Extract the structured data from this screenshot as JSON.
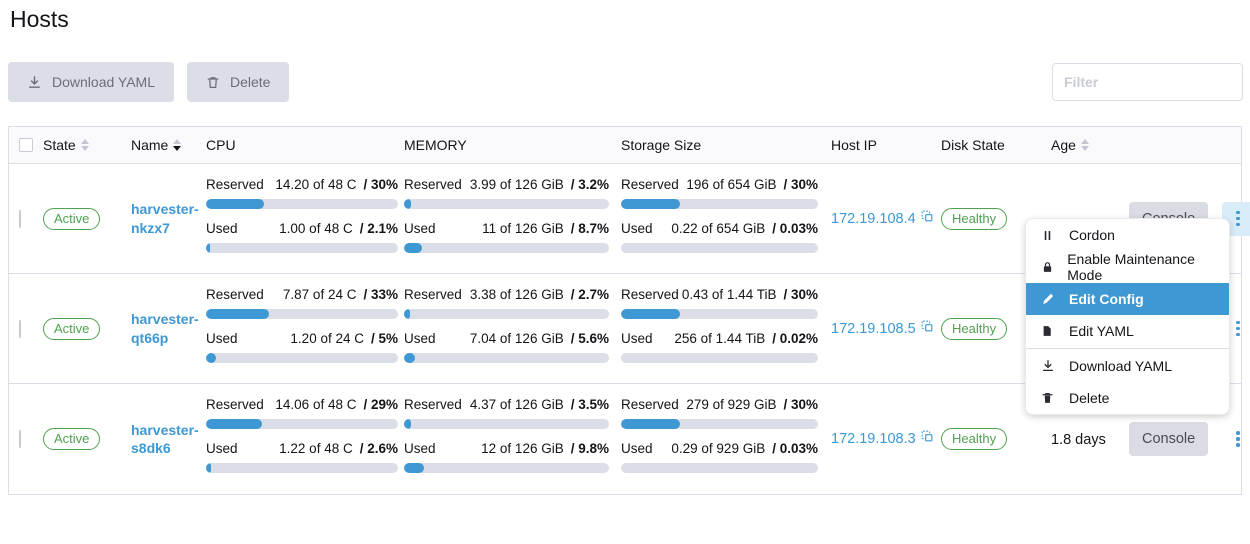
{
  "page": {
    "title": "Hosts"
  },
  "toolbar": {
    "download_yaml_label": "Download YAML",
    "delete_label": "Delete",
    "filter_placeholder": "Filter"
  },
  "table": {
    "headers": [
      {
        "label": "State",
        "col": "state",
        "sort": "none",
        "sortable": true
      },
      {
        "label": "Name",
        "col": "name",
        "sort": "desc",
        "sortable": true
      },
      {
        "label": "CPU",
        "col": "cpu",
        "sort": null,
        "sortable": false
      },
      {
        "label": "MEMORY",
        "col": "mem",
        "sort": null,
        "sortable": false
      },
      {
        "label": "Storage Size",
        "col": "storage",
        "sort": null,
        "sortable": false
      },
      {
        "label": "Host IP",
        "col": "ip",
        "sort": null,
        "sortable": false
      },
      {
        "label": "Disk State",
        "col": "disk",
        "sort": null,
        "sortable": false
      },
      {
        "label": "Age",
        "col": "age",
        "sort": "none",
        "sortable": true
      }
    ],
    "metric_labels": {
      "reserved": "Reserved",
      "used": "Used"
    },
    "console_label": "Console",
    "rows": [
      {
        "state": "Active",
        "name": "harvester-nkzx7",
        "cpu": {
          "reserved": {
            "value": "14.20 of 48 C",
            "pct_text": "/ 30%",
            "pct": 30
          },
          "used": {
            "value": "1.00 of 48 C",
            "pct_text": "/ 2.1%",
            "pct": 2.1
          }
        },
        "memory": {
          "reserved": {
            "value": "3.99 of 126 GiB",
            "pct_text": "/ 3.2%",
            "pct": 3.2
          },
          "used": {
            "value": "11 of 126 GiB",
            "pct_text": "/ 8.7%",
            "pct": 8.7
          }
        },
        "storage": {
          "reserved": {
            "value": "196 of 654 GiB",
            "pct_text": "/ 30%",
            "pct": 30
          },
          "used": {
            "value": "0.22 of 654 GiB",
            "pct_text": "/ 0.03%",
            "pct": 0.03
          }
        },
        "host_ip": "172.19.108.4",
        "disk_state": "Healthy",
        "age": "",
        "menu_open": true
      },
      {
        "state": "Active",
        "name": "harvester-qt66p",
        "cpu": {
          "reserved": {
            "value": "7.87 of 24 C",
            "pct_text": "/ 33%",
            "pct": 33
          },
          "used": {
            "value": "1.20 of 24 C",
            "pct_text": "/ 5%",
            "pct": 5
          }
        },
        "memory": {
          "reserved": {
            "value": "3.38 of 126 GiB",
            "pct_text": "/ 2.7%",
            "pct": 2.7
          },
          "used": {
            "value": "7.04 of 126 GiB",
            "pct_text": "/ 5.6%",
            "pct": 5.6
          }
        },
        "storage": {
          "reserved": {
            "value": "0.43 of 1.44 TiB",
            "pct_text": "/ 30%",
            "pct": 30
          },
          "used": {
            "value": "256 of 1.44 TiB",
            "pct_text": "/ 0.02%",
            "pct": 0.02
          }
        },
        "host_ip": "172.19.108.5",
        "disk_state": "Healthy",
        "age": "",
        "menu_open": false
      },
      {
        "state": "Active",
        "name": "harvester-s8dk6",
        "cpu": {
          "reserved": {
            "value": "14.06 of 48 C",
            "pct_text": "/ 29%",
            "pct": 29
          },
          "used": {
            "value": "1.22 of 48 C",
            "pct_text": "/ 2.6%",
            "pct": 2.6
          }
        },
        "memory": {
          "reserved": {
            "value": "4.37 of 126 GiB",
            "pct_text": "/ 3.5%",
            "pct": 3.5
          },
          "used": {
            "value": "12 of 126 GiB",
            "pct_text": "/ 9.8%",
            "pct": 9.8
          }
        },
        "storage": {
          "reserved": {
            "value": "279 of 929 GiB",
            "pct_text": "/ 30%",
            "pct": 30
          },
          "used": {
            "value": "0.29 of 929 GiB",
            "pct_text": "/ 0.03%",
            "pct": 0.03
          }
        },
        "host_ip": "172.19.108.3",
        "disk_state": "Healthy",
        "age": "1.8 days",
        "menu_open": false
      }
    ]
  },
  "context_menu": {
    "items": [
      {
        "label": "Cordon",
        "icon": "pause-icon",
        "active": false
      },
      {
        "label": "Enable Maintenance Mode",
        "icon": "lock-icon",
        "active": false
      },
      {
        "label": "Edit Config",
        "icon": "pencil-icon",
        "active": true
      },
      {
        "label": "Edit YAML",
        "icon": "file-icon",
        "active": false
      },
      {
        "divider": true
      },
      {
        "label": "Download YAML",
        "icon": "download-icon",
        "active": false
      },
      {
        "label": "Delete",
        "icon": "trash-icon",
        "active": false
      }
    ]
  },
  "colors": {
    "primary": "#3d98d3",
    "success": "#4fa14f",
    "border": "#dcdee7",
    "text": "#141419",
    "muted": "#6c6c76"
  }
}
